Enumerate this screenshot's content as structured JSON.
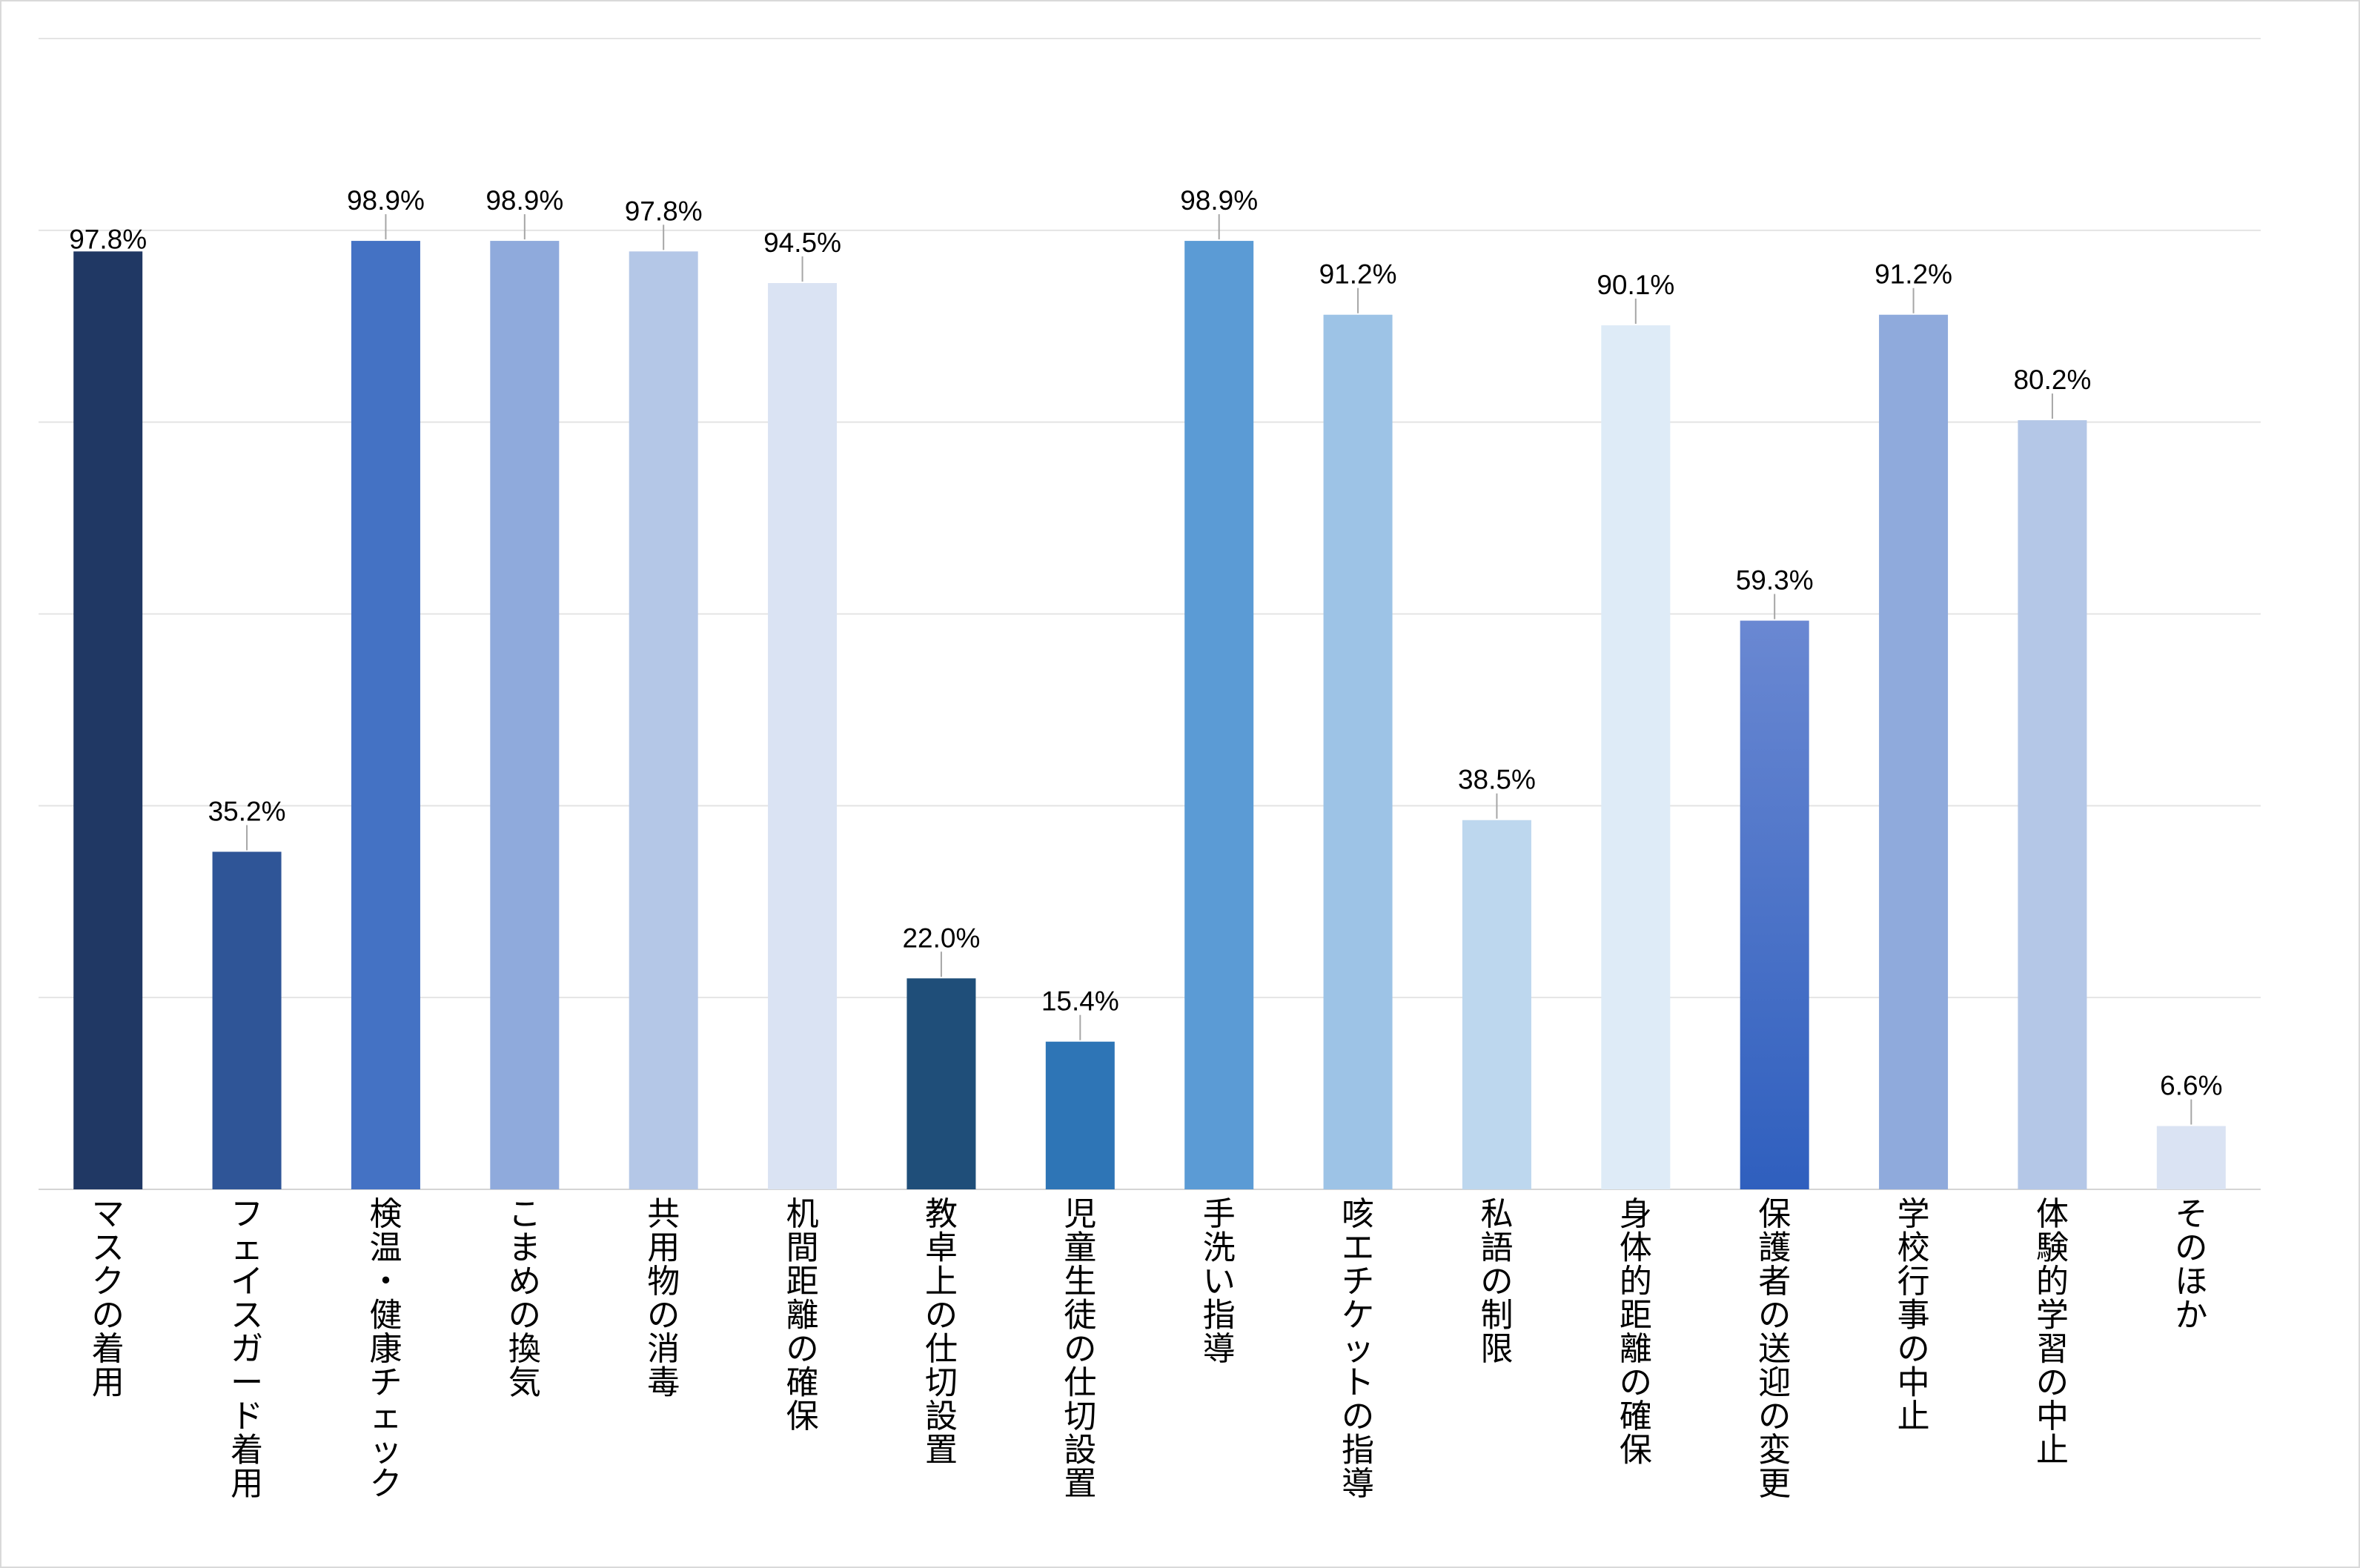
{
  "chart_data": {
    "type": "bar",
    "title": "",
    "xlabel": "",
    "ylabel": "",
    "ylim": [
      0,
      120
    ],
    "grid": true,
    "legend": "none",
    "categories": [
      "マスクの着用",
      "フェイスガード着用",
      "検温・健康チェック",
      "こまめの換気",
      "共用物の消毒",
      "机間距離の確保",
      "教卓上の仕切設置",
      "児童生徒の仕切設置",
      "手洗い指導",
      "咳エチケットの指導",
      "私語の制限",
      "身体的距離の確保",
      "保護者の送迎の変更",
      "学校行事の中止",
      "体験的学習の中止",
      "そのほか"
    ],
    "values": [
      97.8,
      35.2,
      98.9,
      98.9,
      97.8,
      94.5,
      22.0,
      15.4,
      98.9,
      91.2,
      38.5,
      90.1,
      59.3,
      91.2,
      80.2,
      6.6
    ],
    "data_labels": [
      "97.8%",
      "35.2%",
      "98.9%",
      "98.9%",
      "97.8%",
      "94.5%",
      "22.0%",
      "15.4%",
      "98.9%",
      "91.2%",
      "38.5%",
      "90.1%",
      "59.3%",
      "91.2%",
      "80.2%",
      "6.6%"
    ],
    "colors": [
      "#203864",
      "#2f5597",
      "#4472c4",
      "#8faadc",
      "#b4c7e7",
      "#dae3f3",
      "#1f4e79",
      "#2e75b6",
      "#5b9bd5",
      "#9dc3e6",
      "#bdd7ee",
      "#deebf7",
      "#3a66c0",
      "#8faadc",
      "#b4c7e7",
      "#dae3f3"
    ]
  }
}
